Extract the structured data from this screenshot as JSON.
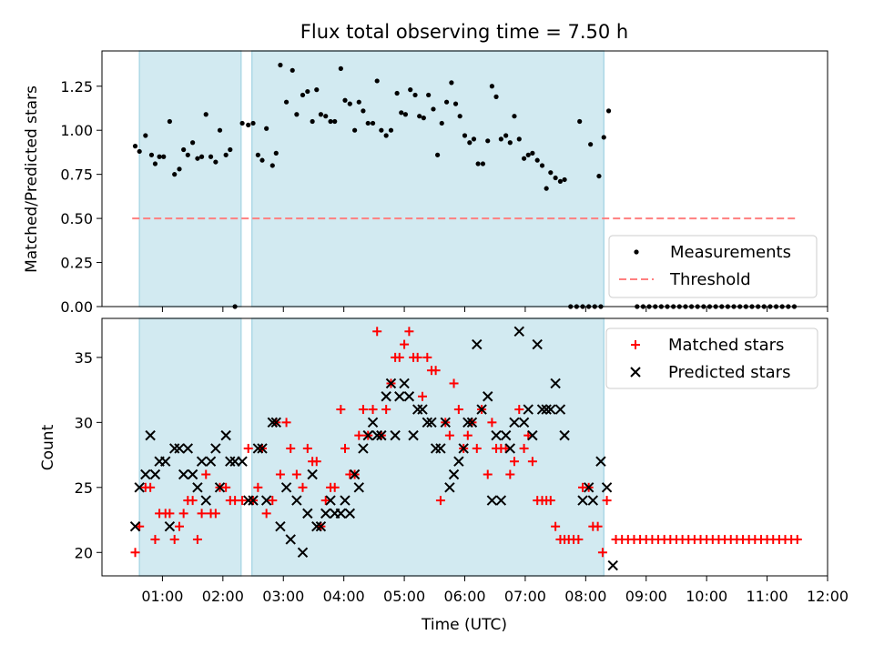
{
  "chart_data": {
    "type": "scatter",
    "title": "Flux total observing time = 7.50 h",
    "xlabel": "Time (UTC)",
    "x_ticks": [
      "01:00",
      "02:00",
      "03:00",
      "04:00",
      "05:00",
      "06:00",
      "07:00",
      "08:00",
      "09:00",
      "10:00",
      "11:00",
      "12:00"
    ],
    "x_range_hours": [
      0.0,
      12.0
    ],
    "observing_windows_hours": [
      [
        0.62,
        2.3
      ],
      [
        2.48,
        8.3
      ]
    ],
    "colors": {
      "window": "#add8e6",
      "measurement": "#000000",
      "threshold": "#ff7f7f",
      "matched": "#ff0000",
      "predicted": "#000000",
      "frame": "#000000"
    },
    "top": {
      "ylabel": "Matched/Predicted stars",
      "ylim": [
        0.0,
        1.45
      ],
      "y_ticks": [
        "0.00",
        "0.25",
        "0.50",
        "0.75",
        "1.00",
        "1.25"
      ],
      "threshold": 0.5,
      "threshold_x_range": [
        0.5,
        11.5
      ],
      "legend": [
        "Measurements",
        "Threshold"
      ],
      "measurements": [
        [
          0.55,
          0.91
        ],
        [
          0.62,
          0.88
        ],
        [
          0.72,
          0.97
        ],
        [
          0.82,
          0.86
        ],
        [
          0.88,
          0.81
        ],
        [
          0.95,
          0.85
        ],
        [
          1.02,
          0.85
        ],
        [
          1.12,
          1.05
        ],
        [
          1.2,
          0.75
        ],
        [
          1.28,
          0.78
        ],
        [
          1.35,
          0.89
        ],
        [
          1.42,
          0.86
        ],
        [
          1.5,
          0.93
        ],
        [
          1.58,
          0.84
        ],
        [
          1.65,
          0.85
        ],
        [
          1.72,
          1.09
        ],
        [
          1.8,
          0.85
        ],
        [
          1.88,
          0.82
        ],
        [
          1.95,
          1.0
        ],
        [
          2.05,
          0.86
        ],
        [
          2.12,
          0.89
        ],
        [
          2.2,
          0.0
        ],
        [
          2.32,
          1.04
        ],
        [
          2.42,
          1.03
        ],
        [
          2.5,
          1.04
        ],
        [
          2.58,
          0.86
        ],
        [
          2.65,
          0.83
        ],
        [
          2.72,
          1.01
        ],
        [
          2.82,
          0.8
        ],
        [
          2.88,
          0.87
        ],
        [
          2.95,
          1.37
        ],
        [
          3.05,
          1.16
        ],
        [
          3.15,
          1.34
        ],
        [
          3.22,
          1.09
        ],
        [
          3.32,
          1.2
        ],
        [
          3.4,
          1.22
        ],
        [
          3.48,
          1.05
        ],
        [
          3.55,
          1.23
        ],
        [
          3.62,
          1.09
        ],
        [
          3.7,
          1.08
        ],
        [
          3.78,
          1.05
        ],
        [
          3.85,
          1.05
        ],
        [
          3.95,
          1.35
        ],
        [
          4.02,
          1.17
        ],
        [
          4.1,
          1.15
        ],
        [
          4.18,
          1.0
        ],
        [
          4.25,
          1.16
        ],
        [
          4.32,
          1.11
        ],
        [
          4.4,
          1.04
        ],
        [
          4.48,
          1.04
        ],
        [
          4.55,
          1.28
        ],
        [
          4.62,
          1.0
        ],
        [
          4.7,
          0.97
        ],
        [
          4.78,
          1.0
        ],
        [
          4.88,
          1.21
        ],
        [
          4.95,
          1.1
        ],
        [
          5.02,
          1.09
        ],
        [
          5.1,
          1.23
        ],
        [
          5.18,
          1.2
        ],
        [
          5.25,
          1.08
        ],
        [
          5.32,
          1.07
        ],
        [
          5.4,
          1.2
        ],
        [
          5.48,
          1.12
        ],
        [
          5.55,
          0.86
        ],
        [
          5.62,
          1.04
        ],
        [
          5.7,
          1.16
        ],
        [
          5.78,
          1.27
        ],
        [
          5.85,
          1.15
        ],
        [
          5.92,
          1.08
        ],
        [
          6.0,
          0.97
        ],
        [
          6.08,
          0.93
        ],
        [
          6.15,
          0.95
        ],
        [
          6.22,
          0.81
        ],
        [
          6.3,
          0.81
        ],
        [
          6.38,
          0.94
        ],
        [
          6.45,
          1.25
        ],
        [
          6.52,
          1.19
        ],
        [
          6.6,
          0.95
        ],
        [
          6.68,
          0.97
        ],
        [
          6.75,
          0.93
        ],
        [
          6.82,
          1.08
        ],
        [
          6.9,
          0.95
        ],
        [
          6.98,
          0.84
        ],
        [
          7.05,
          0.86
        ],
        [
          7.12,
          0.87
        ],
        [
          7.2,
          0.83
        ],
        [
          7.28,
          0.8
        ],
        [
          7.35,
          0.67
        ],
        [
          7.42,
          0.76
        ],
        [
          7.5,
          0.73
        ],
        [
          7.58,
          0.71
        ],
        [
          7.65,
          0.72
        ],
        [
          7.9,
          1.05
        ],
        [
          8.08,
          0.92
        ],
        [
          8.22,
          0.74
        ],
        [
          8.3,
          0.96
        ],
        [
          8.38,
          1.11
        ],
        [
          7.75,
          0.0
        ],
        [
          7.85,
          0.0
        ],
        [
          7.95,
          0.0
        ],
        [
          8.05,
          0.0
        ],
        [
          8.15,
          0.0
        ],
        [
          8.25,
          0.0
        ],
        [
          8.85,
          0.0
        ],
        [
          8.95,
          0.0
        ],
        [
          9.05,
          0.0
        ],
        [
          9.15,
          0.0
        ],
        [
          9.25,
          0.0
        ],
        [
          9.35,
          0.0
        ],
        [
          9.45,
          0.0
        ],
        [
          9.55,
          0.0
        ],
        [
          9.65,
          0.0
        ],
        [
          9.75,
          0.0
        ],
        [
          9.85,
          0.0
        ],
        [
          9.95,
          0.0
        ],
        [
          10.05,
          0.0
        ],
        [
          10.15,
          0.0
        ],
        [
          10.25,
          0.0
        ],
        [
          10.35,
          0.0
        ],
        [
          10.45,
          0.0
        ],
        [
          10.55,
          0.0
        ],
        [
          10.65,
          0.0
        ],
        [
          10.75,
          0.0
        ],
        [
          10.85,
          0.0
        ],
        [
          10.95,
          0.0
        ],
        [
          11.05,
          0.0
        ],
        [
          11.15,
          0.0
        ],
        [
          11.25,
          0.0
        ],
        [
          11.35,
          0.0
        ],
        [
          11.45,
          0.0
        ]
      ]
    },
    "bottom": {
      "ylabel": "Count",
      "ylim": [
        18.2,
        38.0
      ],
      "y_ticks": [
        "20",
        "25",
        "30",
        "35"
      ],
      "legend": [
        "Matched stars",
        "Predicted stars"
      ],
      "matched": [
        [
          0.55,
          20
        ],
        [
          0.62,
          22
        ],
        [
          0.72,
          25
        ],
        [
          0.8,
          25
        ],
        [
          0.88,
          21
        ],
        [
          0.95,
          23
        ],
        [
          1.05,
          23
        ],
        [
          1.12,
          23
        ],
        [
          1.2,
          21
        ],
        [
          1.28,
          22
        ],
        [
          1.35,
          23
        ],
        [
          1.42,
          24
        ],
        [
          1.5,
          24
        ],
        [
          1.58,
          21
        ],
        [
          1.65,
          23
        ],
        [
          1.72,
          26
        ],
        [
          1.8,
          23
        ],
        [
          1.88,
          23
        ],
        [
          1.95,
          25
        ],
        [
          2.05,
          25
        ],
        [
          2.12,
          24
        ],
        [
          2.2,
          24
        ],
        [
          2.32,
          24
        ],
        [
          2.42,
          28
        ],
        [
          2.5,
          24
        ],
        [
          2.58,
          25
        ],
        [
          2.65,
          28
        ],
        [
          2.72,
          23
        ],
        [
          2.82,
          24
        ],
        [
          2.88,
          30
        ],
        [
          2.95,
          26
        ],
        [
          3.05,
          30
        ],
        [
          3.12,
          28
        ],
        [
          3.22,
          26
        ],
        [
          3.32,
          25
        ],
        [
          3.4,
          28
        ],
        [
          3.48,
          27
        ],
        [
          3.55,
          27
        ],
        [
          3.62,
          22
        ],
        [
          3.7,
          24
        ],
        [
          3.78,
          25
        ],
        [
          3.85,
          25
        ],
        [
          3.95,
          31
        ],
        [
          4.02,
          28
        ],
        [
          4.1,
          26
        ],
        [
          4.18,
          26
        ],
        [
          4.25,
          29
        ],
        [
          4.32,
          31
        ],
        [
          4.4,
          29
        ],
        [
          4.48,
          31
        ],
        [
          4.55,
          37
        ],
        [
          4.62,
          29
        ],
        [
          4.7,
          31
        ],
        [
          4.78,
          33
        ],
        [
          4.85,
          35
        ],
        [
          4.92,
          35
        ],
        [
          5.0,
          36
        ],
        [
          5.08,
          37
        ],
        [
          5.15,
          35
        ],
        [
          5.22,
          35
        ],
        [
          5.3,
          32
        ],
        [
          5.38,
          35
        ],
        [
          5.45,
          34
        ],
        [
          5.52,
          34
        ],
        [
          5.6,
          24
        ],
        [
          5.68,
          30
        ],
        [
          5.75,
          29
        ],
        [
          5.82,
          33
        ],
        [
          5.9,
          31
        ],
        [
          5.98,
          28
        ],
        [
          6.05,
          29
        ],
        [
          6.12,
          30
        ],
        [
          6.2,
          28
        ],
        [
          6.28,
          31
        ],
        [
          6.38,
          26
        ],
        [
          6.45,
          30
        ],
        [
          6.52,
          28
        ],
        [
          6.6,
          28
        ],
        [
          6.68,
          28
        ],
        [
          6.75,
          26
        ],
        [
          6.82,
          27
        ],
        [
          6.9,
          31
        ],
        [
          6.98,
          28
        ],
        [
          7.05,
          29
        ],
        [
          7.12,
          27
        ],
        [
          7.2,
          24
        ],
        [
          7.28,
          24
        ],
        [
          7.35,
          24
        ],
        [
          7.42,
          24
        ],
        [
          7.5,
          22
        ],
        [
          7.58,
          21
        ],
        [
          7.65,
          21
        ],
        [
          7.72,
          21
        ],
        [
          7.8,
          21
        ],
        [
          7.88,
          21
        ],
        [
          7.95,
          25
        ],
        [
          8.05,
          25
        ],
        [
          8.12,
          22
        ],
        [
          8.2,
          22
        ],
        [
          8.28,
          20
        ],
        [
          8.35,
          24
        ],
        [
          8.5,
          21
        ],
        [
          8.6,
          21
        ],
        [
          8.7,
          21
        ],
        [
          8.8,
          21
        ],
        [
          8.9,
          21
        ],
        [
          9.0,
          21
        ],
        [
          9.1,
          21
        ],
        [
          9.2,
          21
        ],
        [
          9.3,
          21
        ],
        [
          9.4,
          21
        ],
        [
          9.5,
          21
        ],
        [
          9.6,
          21
        ],
        [
          9.7,
          21
        ],
        [
          9.8,
          21
        ],
        [
          9.9,
          21
        ],
        [
          10.0,
          21
        ],
        [
          10.1,
          21
        ],
        [
          10.2,
          21
        ],
        [
          10.3,
          21
        ],
        [
          10.4,
          21
        ],
        [
          10.5,
          21
        ],
        [
          10.6,
          21
        ],
        [
          10.7,
          21
        ],
        [
          10.8,
          21
        ],
        [
          10.9,
          21
        ],
        [
          11.0,
          21
        ],
        [
          11.1,
          21
        ],
        [
          11.2,
          21
        ],
        [
          11.3,
          21
        ],
        [
          11.4,
          21
        ],
        [
          11.5,
          21
        ]
      ],
      "predicted": [
        [
          0.55,
          22
        ],
        [
          0.62,
          25
        ],
        [
          0.72,
          26
        ],
        [
          0.8,
          29
        ],
        [
          0.88,
          26
        ],
        [
          0.95,
          27
        ],
        [
          1.05,
          27
        ],
        [
          1.12,
          22
        ],
        [
          1.2,
          28
        ],
        [
          1.28,
          28
        ],
        [
          1.35,
          26
        ],
        [
          1.42,
          28
        ],
        [
          1.5,
          26
        ],
        [
          1.58,
          25
        ],
        [
          1.65,
          27
        ],
        [
          1.72,
          24
        ],
        [
          1.8,
          27
        ],
        [
          1.88,
          28
        ],
        [
          1.95,
          25
        ],
        [
          2.05,
          29
        ],
        [
          2.12,
          27
        ],
        [
          2.2,
          27
        ],
        [
          2.32,
          27
        ],
        [
          2.42,
          24
        ],
        [
          2.5,
          24
        ],
        [
          2.58,
          28
        ],
        [
          2.65,
          28
        ],
        [
          2.72,
          24
        ],
        [
          2.82,
          30
        ],
        [
          2.88,
          30
        ],
        [
          2.95,
          22
        ],
        [
          3.05,
          25
        ],
        [
          3.12,
          21
        ],
        [
          3.22,
          24
        ],
        [
          3.32,
          20
        ],
        [
          3.4,
          23
        ],
        [
          3.48,
          26
        ],
        [
          3.55,
          22
        ],
        [
          3.62,
          22
        ],
        [
          3.7,
          23
        ],
        [
          3.78,
          24
        ],
        [
          3.85,
          23
        ],
        [
          3.95,
          23
        ],
        [
          4.02,
          24
        ],
        [
          4.1,
          23
        ],
        [
          4.18,
          26
        ],
        [
          4.25,
          25
        ],
        [
          4.32,
          28
        ],
        [
          4.4,
          29
        ],
        [
          4.48,
          30
        ],
        [
          4.55,
          29
        ],
        [
          4.62,
          29
        ],
        [
          4.7,
          32
        ],
        [
          4.78,
          33
        ],
        [
          4.85,
          29
        ],
        [
          4.92,
          32
        ],
        [
          5.0,
          33
        ],
        [
          5.08,
          32
        ],
        [
          5.15,
          29
        ],
        [
          5.22,
          31
        ],
        [
          5.3,
          31
        ],
        [
          5.38,
          30
        ],
        [
          5.45,
          30
        ],
        [
          5.52,
          28
        ],
        [
          5.6,
          28
        ],
        [
          5.68,
          30
        ],
        [
          5.75,
          25
        ],
        [
          5.82,
          26
        ],
        [
          5.9,
          27
        ],
        [
          5.98,
          28
        ],
        [
          6.05,
          30
        ],
        [
          6.12,
          30
        ],
        [
          6.2,
          36
        ],
        [
          6.28,
          31
        ],
        [
          6.38,
          32
        ],
        [
          6.45,
          24
        ],
        [
          6.52,
          29
        ],
        [
          6.6,
          24
        ],
        [
          6.68,
          29
        ],
        [
          6.75,
          28
        ],
        [
          6.82,
          30
        ],
        [
          6.9,
          37
        ],
        [
          6.98,
          30
        ],
        [
          7.05,
          31
        ],
        [
          7.12,
          29
        ],
        [
          7.2,
          36
        ],
        [
          7.28,
          31
        ],
        [
          7.35,
          31
        ],
        [
          7.42,
          31
        ],
        [
          7.5,
          33
        ],
        [
          7.58,
          31
        ],
        [
          7.65,
          29
        ],
        [
          7.95,
          24
        ],
        [
          8.05,
          25
        ],
        [
          8.12,
          24
        ],
        [
          8.25,
          27
        ],
        [
          8.35,
          25
        ],
        [
          8.45,
          19
        ]
      ]
    }
  }
}
